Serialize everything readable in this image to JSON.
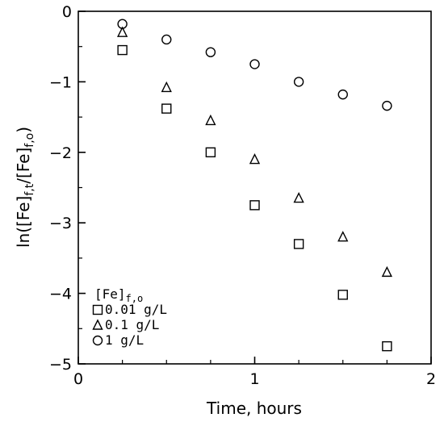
{
  "chart_data": {
    "type": "scatter",
    "title": "",
    "xlabel": "Time, hours",
    "ylabel": {
      "prefix": "ln([Fe]",
      "sub1": "f,t",
      "mid": "/[Fe]",
      "sub2": "f,o",
      "suffix": ")"
    },
    "xlim": [
      0,
      2
    ],
    "ylim": [
      -5,
      0
    ],
    "x_ticks": [
      0,
      1,
      2
    ],
    "x_tick_labels": [
      "0",
      "1",
      "2"
    ],
    "y_ticks": [
      0,
      -1,
      -2,
      -3,
      -4,
      -5
    ],
    "y_tick_labels": [
      "0",
      "−1",
      "−2",
      "−3",
      "−4",
      "−5"
    ],
    "grid": false,
    "legend": {
      "placement": "bottom-left",
      "title_main": "[Fe]",
      "title_sub": "f,o"
    },
    "series": [
      {
        "name": "0.01 g/L",
        "marker": "square",
        "x": [
          0.25,
          0.5,
          0.75,
          1.0,
          1.25,
          1.5,
          1.75
        ],
        "y": [
          -0.55,
          -1.38,
          -2.0,
          -2.75,
          -3.3,
          -4.02,
          -4.75
        ]
      },
      {
        "name": "0.1 g/L",
        "marker": "triangle",
        "x": [
          0.25,
          0.5,
          0.75,
          1.0,
          1.25,
          1.5,
          1.75
        ],
        "y": [
          -0.3,
          -1.08,
          -1.55,
          -2.1,
          -2.65,
          -3.2,
          -3.7
        ]
      },
      {
        "name": "1 g/L",
        "marker": "circle",
        "x": [
          0.25,
          0.5,
          0.75,
          1.0,
          1.25,
          1.5,
          1.75
        ],
        "y": [
          -0.18,
          -0.4,
          -0.58,
          -0.75,
          -1.0,
          -1.18,
          -1.34
        ]
      }
    ]
  }
}
